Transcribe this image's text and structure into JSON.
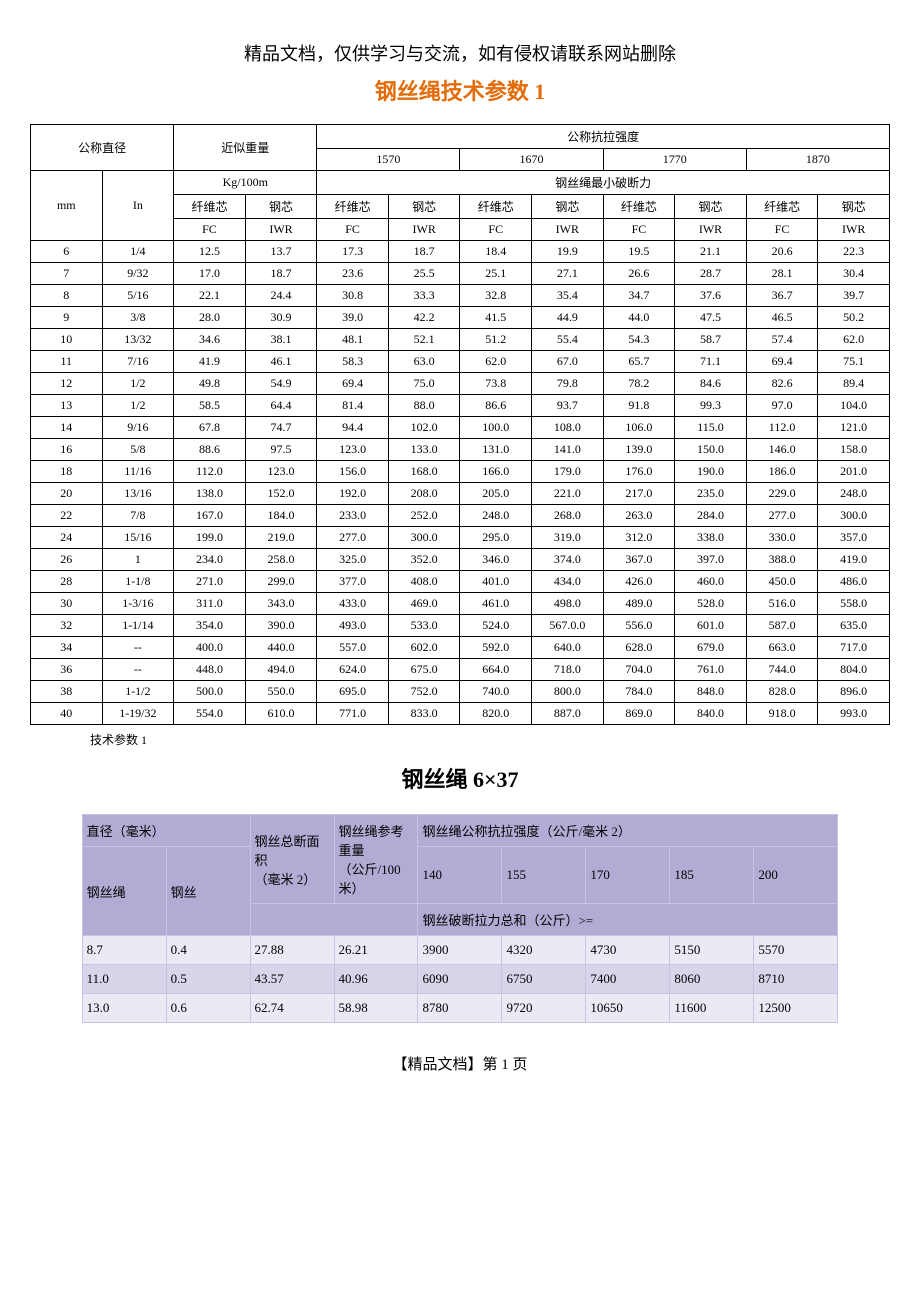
{
  "header_note": "精品文档，仅供学习与交流，如有侵权请联系网站删除",
  "main_title": "钢丝绳技术参数 1",
  "table1": {
    "colgroup_labels": {
      "nominal_diameter": "公称直径",
      "approx_weight": "近似重量",
      "nominal_tensile": "公称抗拉强度",
      "strength_levels": [
        "1570",
        "1670",
        "1770",
        "1870"
      ],
      "kg_100m": "Kg/100m",
      "min_break": "钢丝绳最小破断力",
      "mm": "mm",
      "in": "In",
      "fiber_core": "纤维芯",
      "steel_core": "钢芯",
      "fc": "FC",
      "iwr": "IWR"
    },
    "rows": [
      {
        "mm": "6",
        "in": "1/4",
        "wfc": "12.5",
        "wiwr": "13.7",
        "s1570fc": "17.3",
        "s1570iwr": "18.7",
        "s1670fc": "18.4",
        "s1670iwr": "19.9",
        "s1770fc": "19.5",
        "s1770iwr": "21.1",
        "s1870fc": "20.6",
        "s1870iwr": "22.3"
      },
      {
        "mm": "7",
        "in": "9/32",
        "wfc": "17.0",
        "wiwr": "18.7",
        "s1570fc": "23.6",
        "s1570iwr": "25.5",
        "s1670fc": "25.1",
        "s1670iwr": "27.1",
        "s1770fc": "26.6",
        "s1770iwr": "28.7",
        "s1870fc": "28.1",
        "s1870iwr": "30.4"
      },
      {
        "mm": "8",
        "in": "5/16",
        "wfc": "22.1",
        "wiwr": "24.4",
        "s1570fc": "30.8",
        "s1570iwr": "33.3",
        "s1670fc": "32.8",
        "s1670iwr": "35.4",
        "s1770fc": "34.7",
        "s1770iwr": "37.6",
        "s1870fc": "36.7",
        "s1870iwr": "39.7"
      },
      {
        "mm": "9",
        "in": "3/8",
        "wfc": "28.0",
        "wiwr": "30.9",
        "s1570fc": "39.0",
        "s1570iwr": "42.2",
        "s1670fc": "41.5",
        "s1670iwr": "44.9",
        "s1770fc": "44.0",
        "s1770iwr": "47.5",
        "s1870fc": "46.5",
        "s1870iwr": "50.2"
      },
      {
        "mm": "10",
        "in": "13/32",
        "wfc": "34.6",
        "wiwr": "38.1",
        "s1570fc": "48.1",
        "s1570iwr": "52.1",
        "s1670fc": "51.2",
        "s1670iwr": "55.4",
        "s1770fc": "54.3",
        "s1770iwr": "58.7",
        "s1870fc": "57.4",
        "s1870iwr": "62.0"
      },
      {
        "mm": "11",
        "in": "7/16",
        "wfc": "41.9",
        "wiwr": "46.1",
        "s1570fc": "58.3",
        "s1570iwr": "63.0",
        "s1670fc": "62.0",
        "s1670iwr": "67.0",
        "s1770fc": "65.7",
        "s1770iwr": "71.1",
        "s1870fc": "69.4",
        "s1870iwr": "75.1"
      },
      {
        "mm": "12",
        "in": "1/2",
        "wfc": "49.8",
        "wiwr": "54.9",
        "s1570fc": "69.4",
        "s1570iwr": "75.0",
        "s1670fc": "73.8",
        "s1670iwr": "79.8",
        "s1770fc": "78.2",
        "s1770iwr": "84.6",
        "s1870fc": "82.6",
        "s1870iwr": "89.4"
      },
      {
        "mm": "13",
        "in": "1/2",
        "wfc": "58.5",
        "wiwr": "64.4",
        "s1570fc": "81.4",
        "s1570iwr": "88.0",
        "s1670fc": "86.6",
        "s1670iwr": "93.7",
        "s1770fc": "91.8",
        "s1770iwr": "99.3",
        "s1870fc": "97.0",
        "s1870iwr": "104.0"
      },
      {
        "mm": "14",
        "in": "9/16",
        "wfc": "67.8",
        "wiwr": "74.7",
        "s1570fc": "94.4",
        "s1570iwr": "102.0",
        "s1670fc": "100.0",
        "s1670iwr": "108.0",
        "s1770fc": "106.0",
        "s1770iwr": "115.0",
        "s1870fc": "112.0",
        "s1870iwr": "121.0"
      },
      {
        "mm": "16",
        "in": "5/8",
        "wfc": "88.6",
        "wiwr": "97.5",
        "s1570fc": "123.0",
        "s1570iwr": "133.0",
        "s1670fc": "131.0",
        "s1670iwr": "141.0",
        "s1770fc": "139.0",
        "s1770iwr": "150.0",
        "s1870fc": "146.0",
        "s1870iwr": "158.0"
      },
      {
        "mm": "18",
        "in": "11/16",
        "wfc": "112.0",
        "wiwr": "123.0",
        "s1570fc": "156.0",
        "s1570iwr": "168.0",
        "s1670fc": "166.0",
        "s1670iwr": "179.0",
        "s1770fc": "176.0",
        "s1770iwr": "190.0",
        "s1870fc": "186.0",
        "s1870iwr": "201.0"
      },
      {
        "mm": "20",
        "in": "13/16",
        "wfc": "138.0",
        "wiwr": "152.0",
        "s1570fc": "192.0",
        "s1570iwr": "208.0",
        "s1670fc": "205.0",
        "s1670iwr": "221.0",
        "s1770fc": "217.0",
        "s1770iwr": "235.0",
        "s1870fc": "229.0",
        "s1870iwr": "248.0"
      },
      {
        "mm": "22",
        "in": "7/8",
        "wfc": "167.0",
        "wiwr": "184.0",
        "s1570fc": "233.0",
        "s1570iwr": "252.0",
        "s1670fc": "248.0",
        "s1670iwr": "268.0",
        "s1770fc": "263.0",
        "s1770iwr": "284.0",
        "s1870fc": "277.0",
        "s1870iwr": "300.0"
      },
      {
        "mm": "24",
        "in": "15/16",
        "wfc": "199.0",
        "wiwr": "219.0",
        "s1570fc": "277.0",
        "s1570iwr": "300.0",
        "s1670fc": "295.0",
        "s1670iwr": "319.0",
        "s1770fc": "312.0",
        "s1770iwr": "338.0",
        "s1870fc": "330.0",
        "s1870iwr": "357.0"
      },
      {
        "mm": "26",
        "in": "1",
        "wfc": "234.0",
        "wiwr": "258.0",
        "s1570fc": "325.0",
        "s1570iwr": "352.0",
        "s1670fc": "346.0",
        "s1670iwr": "374.0",
        "s1770fc": "367.0",
        "s1770iwr": "397.0",
        "s1870fc": "388.0",
        "s1870iwr": "419.0"
      },
      {
        "mm": "28",
        "in": "1-1/8",
        "wfc": "271.0",
        "wiwr": "299.0",
        "s1570fc": "377.0",
        "s1570iwr": "408.0",
        "s1670fc": "401.0",
        "s1670iwr": "434.0",
        "s1770fc": "426.0",
        "s1770iwr": "460.0",
        "s1870fc": "450.0",
        "s1870iwr": "486.0"
      },
      {
        "mm": "30",
        "in": "1-3/16",
        "wfc": "311.0",
        "wiwr": "343.0",
        "s1570fc": "433.0",
        "s1570iwr": "469.0",
        "s1670fc": "461.0",
        "s1670iwr": "498.0",
        "s1770fc": "489.0",
        "s1770iwr": "528.0",
        "s1870fc": "516.0",
        "s1870iwr": "558.0"
      },
      {
        "mm": "32",
        "in": "1-1/14",
        "wfc": "354.0",
        "wiwr": "390.0",
        "s1570fc": "493.0",
        "s1570iwr": "533.0",
        "s1670fc": "524.0",
        "s1670iwr": "567.0.0",
        "s1770fc": "556.0",
        "s1770iwr": "601.0",
        "s1870fc": "587.0",
        "s1870iwr": "635.0"
      },
      {
        "mm": "34",
        "in": "--",
        "wfc": "400.0",
        "wiwr": "440.0",
        "s1570fc": "557.0",
        "s1570iwr": "602.0",
        "s1670fc": "592.0",
        "s1670iwr": "640.0",
        "s1770fc": "628.0",
        "s1770iwr": "679.0",
        "s1870fc": "663.0",
        "s1870iwr": "717.0"
      },
      {
        "mm": "36",
        "in": "--",
        "wfc": "448.0",
        "wiwr": "494.0",
        "s1570fc": "624.0",
        "s1570iwr": "675.0",
        "s1670fc": "664.0",
        "s1670iwr": "718.0",
        "s1770fc": "704.0",
        "s1770iwr": "761.0",
        "s1870fc": "744.0",
        "s1870iwr": "804.0"
      },
      {
        "mm": "38",
        "in": "1-1/2",
        "wfc": "500.0",
        "wiwr": "550.0",
        "s1570fc": "695.0",
        "s1570iwr": "752.0",
        "s1670fc": "740.0",
        "s1670iwr": "800.0",
        "s1770fc": "784.0",
        "s1770iwr": "848.0",
        "s1870fc": "828.0",
        "s1870iwr": "896.0"
      },
      {
        "mm": "40",
        "in": "1-19/32",
        "wfc": "554.0",
        "wiwr": "610.0",
        "s1570fc": "771.0",
        "s1570iwr": "833.0",
        "s1670fc": "820.0",
        "s1670iwr": "887.0",
        "s1770fc": "869.0",
        "s1770iwr": "840.0",
        "s1870fc": "918.0",
        "s1870iwr": "993.0"
      }
    ]
  },
  "caption1": "技术参数 1",
  "sub_title": "钢丝绳 6×37",
  "table2": {
    "headers": {
      "diameter_mm": "直径（毫米）",
      "rope": "钢丝绳",
      "wire": "钢丝",
      "total_area": "钢丝总断面积",
      "total_area_unit": "（毫米 2）",
      "ref_weight": "钢丝绳参考重量",
      "ref_weight_unit": "（公斤/100 米）",
      "nominal_tensile": "钢丝绳公称抗拉强度（公斤/毫米 2）",
      "strength_levels": [
        "140",
        "155",
        "170",
        "185",
        "200"
      ],
      "break_sum": "钢丝破断拉力总和（公斤）>="
    },
    "rows": [
      {
        "rope": "8.7",
        "wire": "0.4",
        "area": "27.88",
        "weight": "26.21",
        "v140": "3900",
        "v155": "4320",
        "v170": "4730",
        "v185": "5150",
        "v200": "5570"
      },
      {
        "rope": "11.0",
        "wire": "0.5",
        "area": "43.57",
        "weight": "40.96",
        "v140": "6090",
        "v155": "6750",
        "v170": "7400",
        "v185": "8060",
        "v200": "8710"
      },
      {
        "rope": "13.0",
        "wire": "0.6",
        "area": "62.74",
        "weight": "58.98",
        "v140": "8780",
        "v155": "9720",
        "v170": "10650",
        "v185": "11600",
        "v200": "12500"
      }
    ]
  },
  "footer": "【精品文档】第 1 页",
  "colors": {
    "title_color": "#e36c09",
    "t2_head_bg": "#b4abd4",
    "t2_row_odd": "#ece9f4",
    "t2_row_even": "#d9d4ea",
    "t2_border": "#c8c3de"
  }
}
